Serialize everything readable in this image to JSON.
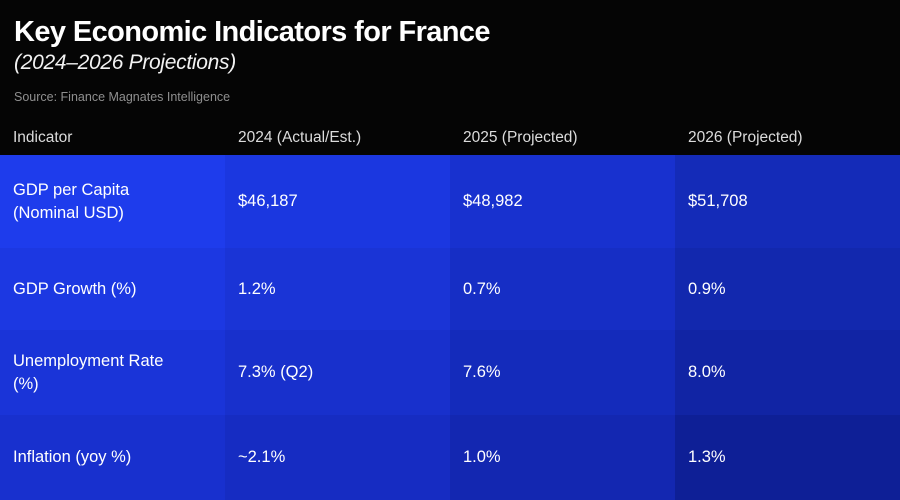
{
  "header": {
    "title": "Key Economic Indicators for France",
    "subtitle": "(2024–2026 Projections)",
    "source": "Source: Finance Magnates Intelligence"
  },
  "colors": {
    "background": "#050505",
    "title_text": "#ffffff",
    "source_text": "#8f8f8f",
    "column_header_text": "#dcdcdc",
    "cell_text": "#ffffff"
  },
  "table": {
    "columns": [
      "Indicator",
      "2024 (Actual/Est.)",
      "2025 (Projected)",
      "2026 (Projected)"
    ],
    "rows": [
      {
        "indicator": "GDP per Capita (Nominal USD)",
        "values": [
          "$46,187",
          "$48,982",
          "$51,708"
        ]
      },
      {
        "indicator": "GDP Growth (%)",
        "values": [
          "1.2%",
          "0.7%",
          "0.9%"
        ]
      },
      {
        "indicator": "Unemployment Rate (%)",
        "values": [
          "7.3% (Q2)",
          "7.6%",
          "8.0%"
        ]
      },
      {
        "indicator": "Inflation (yoy %)",
        "values": [
          "~2.1%",
          "1.0%",
          "1.3%"
        ]
      }
    ],
    "cell_colors": [
      [
        "#1e3cec",
        "#1b37e0",
        "#1831cf",
        "#142bb8"
      ],
      [
        "#1c38e2",
        "#1a34d6",
        "#162ec5",
        "#1228ae"
      ],
      [
        "#1a34d8",
        "#1830cc",
        "#142bbb",
        "#1124a4"
      ],
      [
        "#1830ce",
        "#162cc2",
        "#1327b1",
        "#0e1f96"
      ]
    ]
  },
  "chart_data": {
    "type": "table",
    "title": "Key Economic Indicators for France",
    "subtitle": "(2024–2026 Projections)",
    "source": "Source: Finance Magnates Intelligence",
    "columns": [
      "Indicator",
      "2024 (Actual/Est.)",
      "2025 (Projected)",
      "2026 (Projected)"
    ],
    "rows": [
      [
        "GDP per Capita (Nominal USD)",
        "$46,187",
        "$48,982",
        "$51,708"
      ],
      [
        "GDP Growth (%)",
        "1.2%",
        "0.7%",
        "0.9%"
      ],
      [
        "Unemployment Rate (%)",
        "7.3% (Q2)",
        "7.6%",
        "8.0%"
      ],
      [
        "Inflation (yoy %)",
        "~2.1%",
        "1.0%",
        "1.3%"
      ]
    ]
  }
}
